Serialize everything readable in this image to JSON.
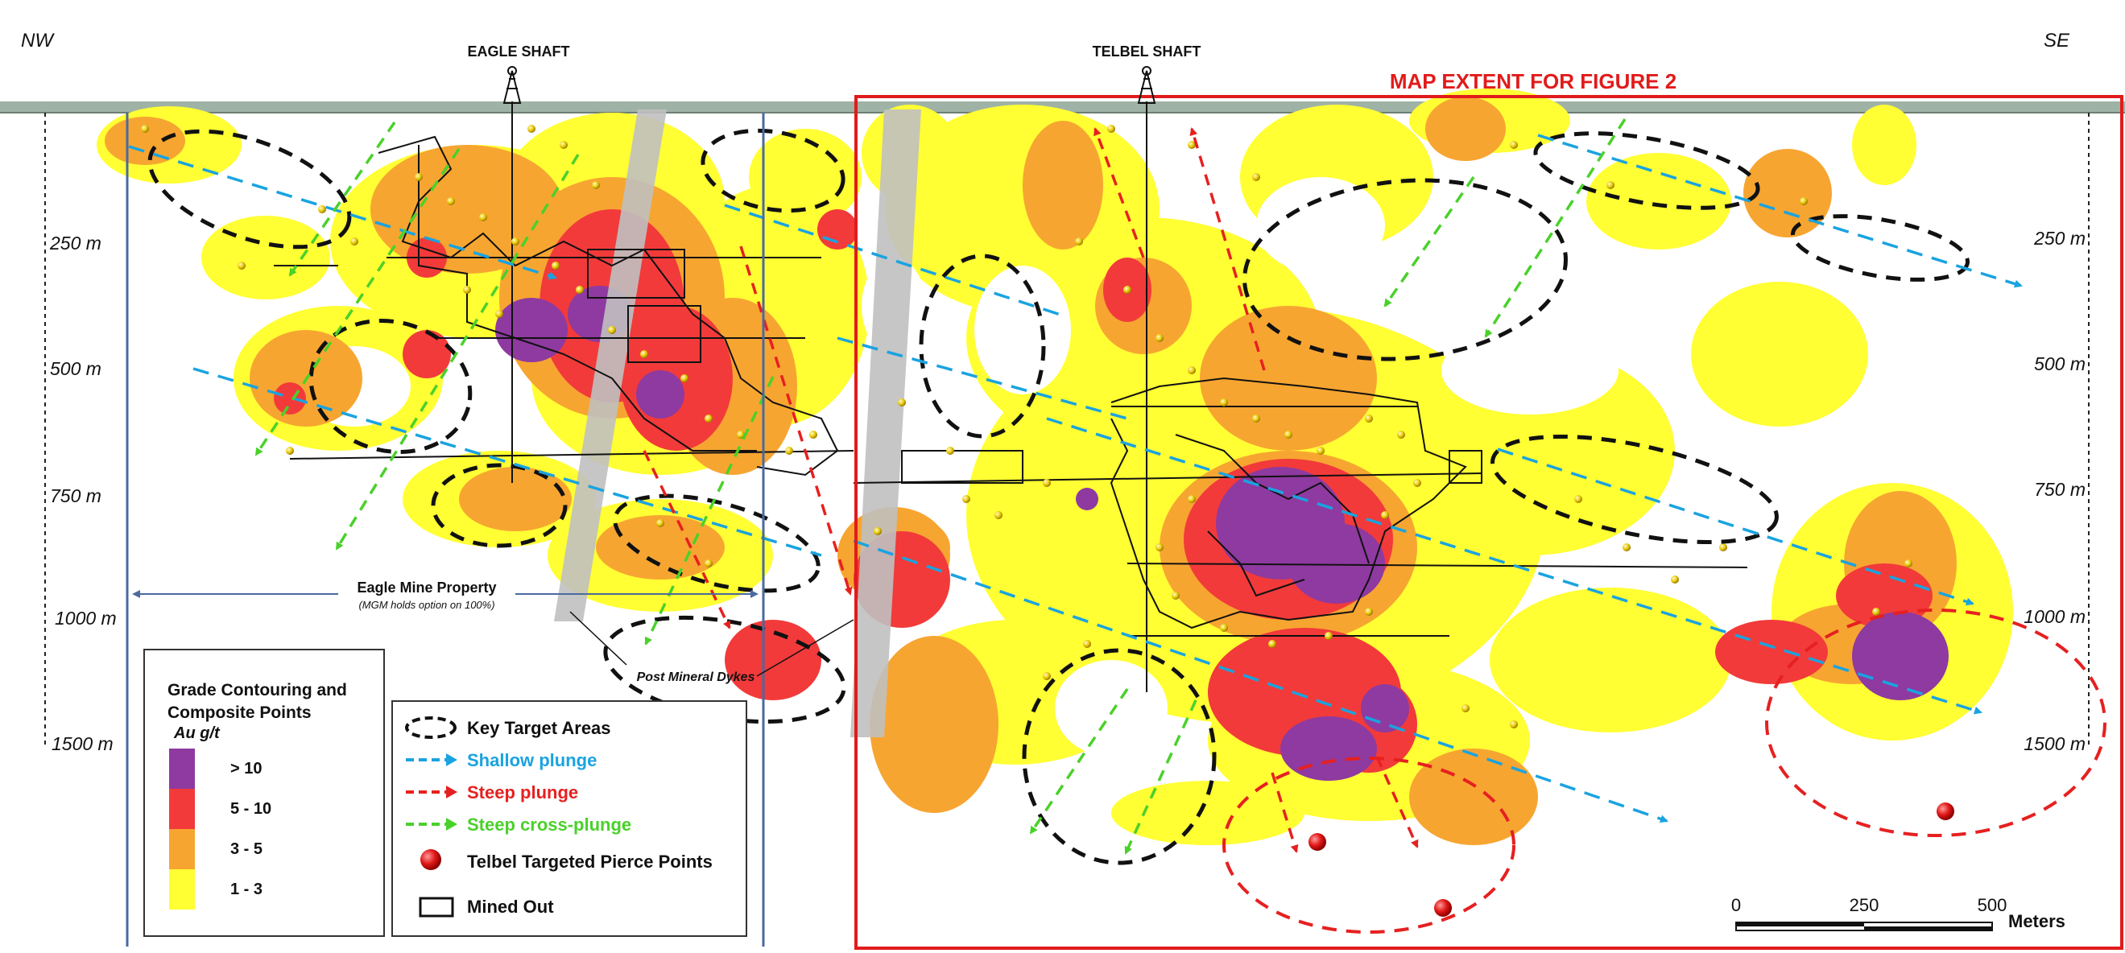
{
  "orientation": {
    "left": "NW",
    "right": "SE"
  },
  "shafts": [
    {
      "name": "EAGLE SHAFT"
    },
    {
      "name": "TELBEL SHAFT"
    }
  ],
  "map_extent_label": "MAP EXTENT FOR FIGURE 2",
  "depth_labels_left": [
    "250 m",
    "500 m",
    "750 m",
    "1000 m",
    "1500 m"
  ],
  "depth_labels_right": [
    "250 m",
    "500 m",
    "750 m",
    "1000 m",
    "1500 m"
  ],
  "property": {
    "name": "Eagle Mine Property",
    "note": "(MGM holds option on 100%)"
  },
  "dykes_label": "Post Mineral Dykes",
  "grade_legend": {
    "title": "Grade Contouring and Composite Points",
    "unit": "Au g/t",
    "classes": [
      {
        "label": "> 10",
        "color": "#8e3aa0"
      },
      {
        "label": "5 - 10",
        "color": "#f23a3a"
      },
      {
        "label": "3 - 5",
        "color": "#f7a531"
      },
      {
        "label": "1 - 3",
        "color": "#ffff33"
      }
    ]
  },
  "key_legend": {
    "items": [
      {
        "label": "Key Target Areas",
        "color": "#111111",
        "icon": "dashed-ellipse-icon"
      },
      {
        "label": "Shallow plunge",
        "color": "#1aa3e0",
        "icon": "dashed-arrow-icon"
      },
      {
        "label": "Steep plunge",
        "color": "#e62020",
        "icon": "dashed-arrow-icon"
      },
      {
        "label": "Steep cross-plunge",
        "color": "#4ad12a",
        "icon": "dashed-arrow-icon"
      },
      {
        "label": "Telbel Targeted Pierce Points",
        "color": "#111111",
        "icon": "red-sphere-icon"
      },
      {
        "label": "Mined Out",
        "color": "#111111",
        "icon": "rectangle-icon"
      }
    ]
  },
  "scale_bar": {
    "ticks": [
      "0",
      "250",
      "500"
    ],
    "unit": "Meters"
  },
  "colors": {
    "extent_box": "#e11b1b",
    "property_line": "#4a6aa0",
    "dyke": "#c0c0c0"
  }
}
